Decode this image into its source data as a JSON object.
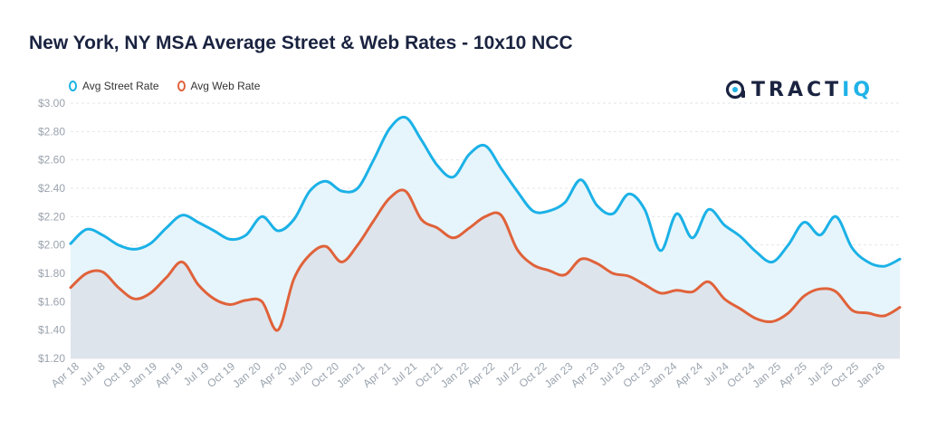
{
  "title": "New York, NY MSA Average Street & Web Rates - 10x10 NCC",
  "logo": {
    "main": "TRACT",
    "accent": "IQ"
  },
  "colors": {
    "street": "#1bb1e7",
    "web": "#e0623a",
    "street_fill": "#e3f4fb",
    "web_fill": "#dde2ea"
  },
  "chart_data": {
    "type": "area",
    "title": "New York, NY MSA Average Street & Web Rates - 10x10 NCC",
    "legend_position": "top-left",
    "grid": true,
    "ylim": [
      1.2,
      3.0
    ],
    "yticks": [
      "$1.20",
      "$1.40",
      "$1.60",
      "$1.80",
      "$2.00",
      "$2.20",
      "$2.40",
      "$2.60",
      "$2.80",
      "$3.00"
    ],
    "xticks": [
      "Apr 18",
      "Jul 18",
      "Oct 18",
      "Jan 19",
      "Apr 19",
      "Jul 19",
      "Oct 19",
      "Jan 20",
      "Apr 20",
      "Jul 20",
      "Oct 20",
      "Jan 21",
      "Apr 21",
      "Jul 21",
      "Oct 21",
      "Jan 22",
      "Apr 22",
      "Jul 22",
      "Oct 22",
      "Jan 23",
      "Apr 23",
      "Jul 23",
      "Oct 23",
      "Jan 24",
      "Apr 24",
      "Jul 24",
      "Oct 24",
      "Jan 25",
      "Apr 25",
      "Jul 25",
      "Oct 25",
      "Jan 26"
    ],
    "series": [
      {
        "name": "Avg Street Rate",
        "values": [
          2.01,
          2.11,
          2.07,
          2.0,
          1.97,
          2.01,
          2.12,
          2.21,
          2.16,
          2.1,
          2.04,
          2.07,
          2.2,
          2.1,
          2.18,
          2.38,
          2.45,
          2.38,
          2.4,
          2.6,
          2.82,
          2.9,
          2.74,
          2.56,
          2.48,
          2.64,
          2.7,
          2.54,
          2.38,
          2.24,
          2.24,
          2.3,
          2.46,
          2.28,
          2.22,
          2.36,
          2.25,
          1.96,
          2.22,
          2.05,
          2.25,
          2.14,
          2.06,
          1.95,
          1.88,
          2.0,
          2.16,
          2.07,
          2.2,
          1.98,
          1.88,
          1.85,
          1.9
        ]
      },
      {
        "name": "Avg Web Rate",
        "values": [
          1.7,
          1.8,
          1.81,
          1.7,
          1.62,
          1.66,
          1.77,
          1.88,
          1.72,
          1.62,
          1.58,
          1.61,
          1.6,
          1.4,
          1.76,
          1.93,
          1.99,
          1.88,
          2.0,
          2.17,
          2.33,
          2.38,
          2.18,
          2.12,
          2.05,
          2.12,
          2.2,
          2.21,
          1.97,
          1.86,
          1.82,
          1.79,
          1.9,
          1.87,
          1.8,
          1.78,
          1.72,
          1.66,
          1.68,
          1.67,
          1.74,
          1.62,
          1.55,
          1.48,
          1.46,
          1.52,
          1.64,
          1.69,
          1.67,
          1.54,
          1.52,
          1.5,
          1.56
        ]
      }
    ]
  }
}
